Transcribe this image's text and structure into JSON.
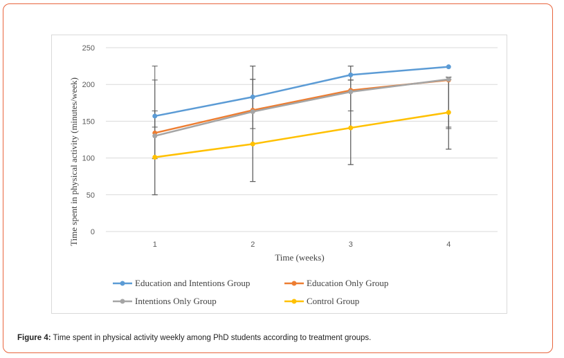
{
  "caption": {
    "label": "Figure 4:",
    "text": " Time spent in physical activity weekly among PhD students according to treatment groups."
  },
  "chart_data": {
    "type": "line",
    "title": "",
    "xlabel": "Time (weeks)",
    "ylabel": "Time spent in physical activity (minutes/week)",
    "categories": [
      "1",
      "2",
      "3",
      "4"
    ],
    "ylim": [
      0,
      250
    ],
    "yticks": [
      "0",
      "50",
      "100",
      "150",
      "200",
      "250"
    ],
    "grid": true,
    "legend_position": "bottom",
    "series": [
      {
        "name": "Education  and Intentions  Group",
        "values": [
          157,
          183,
          213,
          224
        ],
        "color": "#5b9bd5",
        "error_low": [
          142,
          163,
          206,
          140
        ],
        "error_high": [
          164,
          207,
          225,
          207
        ]
      },
      {
        "name": "Education Only Group",
        "values": [
          134,
          165,
          192,
          206
        ],
        "color": "#ed7d31",
        "error_low": [
          99,
          140,
          164,
          112
        ],
        "error_high": [
          164,
          225,
          206,
          210
        ]
      },
      {
        "name": "Intentions  Only Group",
        "values": [
          130,
          163,
          190,
          207
        ],
        "color": "#a5a5a5",
        "error_low": [
          50,
          68,
          91,
          142
        ],
        "error_high": [
          206,
          225,
          225,
          210
        ]
      },
      {
        "name": "Control Group",
        "values": [
          101,
          119,
          141,
          162
        ],
        "color": "#ffc000",
        "error_low": [
          50,
          68,
          91,
          112
        ],
        "error_high": [
          225,
          207,
          206,
          210
        ]
      }
    ]
  }
}
